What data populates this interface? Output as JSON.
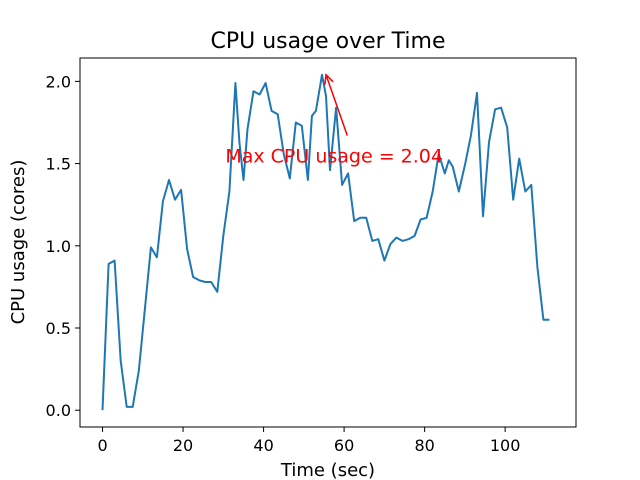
{
  "chart_data": {
    "type": "line",
    "title": "CPU usage over Time",
    "xlabel": "Time (sec)",
    "ylabel": "CPU usage (cores)",
    "xlim": [
      -5.6,
      117.6
    ],
    "ylim": [
      -0.102,
      2.142
    ],
    "xticks": [
      0,
      20,
      40,
      60,
      80,
      100
    ],
    "yticks": [
      0.0,
      0.5,
      1.0,
      1.5,
      2.0
    ],
    "ytick_labels": [
      "0.0",
      "0.5",
      "1.0",
      "1.5",
      "2.0"
    ],
    "grid": false,
    "line_color": "#1f77b4",
    "annotation": {
      "text": "Max CPU usage = 2.04",
      "point": [
        55.5,
        2.04
      ],
      "text_pos": [
        30.5,
        1.55
      ],
      "arrow_tail": [
        60.8,
        1.67
      ],
      "color": "#ff0000"
    },
    "series": [
      {
        "x": [
          0,
          1.5,
          3,
          4.5,
          6,
          7.5,
          9,
          10.5,
          12,
          13.5,
          15,
          16.5,
          18,
          19.5,
          21,
          22.5,
          24,
          25.5,
          27,
          28.5,
          30,
          31.5,
          33,
          34,
          35,
          36,
          37.5,
          39,
          40.5,
          42,
          43.5,
          45,
          46.5,
          48,
          49.5,
          51,
          52,
          53,
          54.5,
          55.5,
          56.5,
          58,
          59.5,
          61,
          62.5,
          64,
          65.5,
          67,
          68.5,
          70,
          71.5,
          73,
          74.5,
          76,
          77.5,
          79,
          80.5,
          82,
          83.5,
          85,
          86,
          87,
          88.5,
          90,
          91.5,
          93,
          94.5,
          96,
          97.5,
          99,
          100.5,
          102,
          103.5,
          105,
          106.5,
          108,
          109.5,
          111
        ],
        "values": [
          0.0,
          0.89,
          0.91,
          0.3,
          0.02,
          0.02,
          0.24,
          0.61,
          0.99,
          0.93,
          1.27,
          1.4,
          1.28,
          1.34,
          0.98,
          0.81,
          0.79,
          0.78,
          0.78,
          0.72,
          1.06,
          1.33,
          1.99,
          1.63,
          1.4,
          1.71,
          1.94,
          1.92,
          1.99,
          1.82,
          1.8,
          1.56,
          1.41,
          1.75,
          1.73,
          1.4,
          1.79,
          1.82,
          2.04,
          1.91,
          1.46,
          1.84,
          1.37,
          1.44,
          1.15,
          1.17,
          1.17,
          1.03,
          1.04,
          0.91,
          1.01,
          1.05,
          1.03,
          1.04,
          1.06,
          1.16,
          1.17,
          1.33,
          1.56,
          1.44,
          1.52,
          1.48,
          1.33,
          1.49,
          1.67,
          1.93,
          1.18,
          1.63,
          1.83,
          1.84,
          1.72,
          1.28,
          1.53,
          1.33,
          1.37,
          0.87,
          0.55,
          0.55
        ]
      }
    ]
  }
}
